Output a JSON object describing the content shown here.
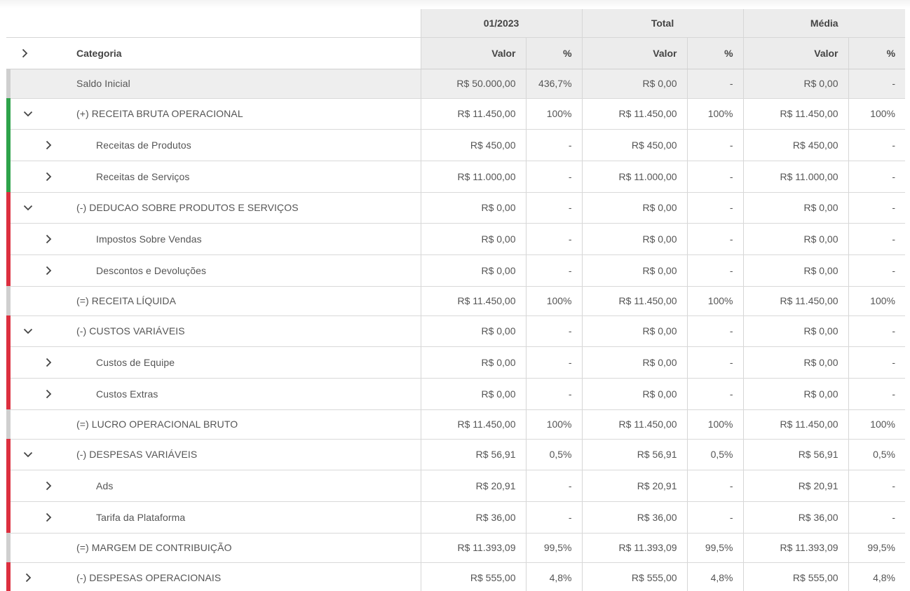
{
  "header": {
    "periods": [
      "01/2023",
      "Total",
      "Média"
    ],
    "category_label": "Categoria",
    "value_label": "Valor",
    "percent_label": "%"
  },
  "colors": {
    "revenue": "#2ea34a",
    "deduction": "#dc2f3f",
    "result": "#cfcfcf"
  },
  "rows": [
    {
      "label": "Saldo Inicial",
      "v1": "R$ 50.000,00",
      "p1": "436,7%",
      "v2": "R$ 0,00",
      "p2": "-",
      "v3": "R$ 0,00",
      "p3": "-"
    },
    {
      "label": "(+) RECEITA BRUTA OPERACIONAL",
      "v1": "R$ 11.450,00",
      "p1": "100%",
      "v2": "R$ 11.450,00",
      "p2": "100%",
      "v3": "R$ 11.450,00",
      "p3": "100%"
    },
    {
      "label": "Receitas de Produtos",
      "v1": "R$ 450,00",
      "p1": "-",
      "v2": "R$ 450,00",
      "p2": "-",
      "v3": "R$ 450,00",
      "p3": "-"
    },
    {
      "label": "Receitas de Serviços",
      "v1": "R$ 11.000,00",
      "p1": "-",
      "v2": "R$ 11.000,00",
      "p2": "-",
      "v3": "R$ 11.000,00",
      "p3": "-"
    },
    {
      "label": "(-) DEDUCAO SOBRE PRODUTOS E SERVIÇOS",
      "v1": "R$ 0,00",
      "p1": "-",
      "v2": "R$ 0,00",
      "p2": "-",
      "v3": "R$ 0,00",
      "p3": "-"
    },
    {
      "label": "Impostos Sobre Vendas",
      "v1": "R$ 0,00",
      "p1": "-",
      "v2": "R$ 0,00",
      "p2": "-",
      "v3": "R$ 0,00",
      "p3": "-"
    },
    {
      "label": "Descontos e Devoluções",
      "v1": "R$ 0,00",
      "p1": "-",
      "v2": "R$ 0,00",
      "p2": "-",
      "v3": "R$ 0,00",
      "p3": "-"
    },
    {
      "label": "(=) RECEITA LÍQUIDA",
      "v1": "R$ 11.450,00",
      "p1": "100%",
      "v2": "R$ 11.450,00",
      "p2": "100%",
      "v3": "R$ 11.450,00",
      "p3": "100%"
    },
    {
      "label": "(-) CUSTOS VARIÁVEIS",
      "v1": "R$ 0,00",
      "p1": "-",
      "v2": "R$ 0,00",
      "p2": "-",
      "v3": "R$ 0,00",
      "p3": "-"
    },
    {
      "label": "Custos de Equipe",
      "v1": "R$ 0,00",
      "p1": "-",
      "v2": "R$ 0,00",
      "p2": "-",
      "v3": "R$ 0,00",
      "p3": "-"
    },
    {
      "label": "Custos Extras",
      "v1": "R$ 0,00",
      "p1": "-",
      "v2": "R$ 0,00",
      "p2": "-",
      "v3": "R$ 0,00",
      "p3": "-"
    },
    {
      "label": "(=) LUCRO OPERACIONAL BRUTO",
      "v1": "R$ 11.450,00",
      "p1": "100%",
      "v2": "R$ 11.450,00",
      "p2": "100%",
      "v3": "R$ 11.450,00",
      "p3": "100%"
    },
    {
      "label": "(-) DESPESAS VARIÁVEIS",
      "v1": "R$ 56,91",
      "p1": "0,5%",
      "v2": "R$ 56,91",
      "p2": "0,5%",
      "v3": "R$ 56,91",
      "p3": "0,5%"
    },
    {
      "label": "Ads",
      "v1": "R$ 20,91",
      "p1": "-",
      "v2": "R$ 20,91",
      "p2": "-",
      "v3": "R$ 20,91",
      "p3": "-"
    },
    {
      "label": "Tarifa da Plataforma",
      "v1": "R$ 36,00",
      "p1": "-",
      "v2": "R$ 36,00",
      "p2": "-",
      "v3": "R$ 36,00",
      "p3": "-"
    },
    {
      "label": "(=) MARGEM DE CONTRIBUIÇÃO",
      "v1": "R$ 11.393,09",
      "p1": "99,5%",
      "v2": "R$ 11.393,09",
      "p2": "99,5%",
      "v3": "R$ 11.393,09",
      "p3": "99,5%"
    },
    {
      "label": "(-) DESPESAS OPERACIONAIS",
      "v1": "R$ 555,00",
      "p1": "4,8%",
      "v2": "R$ 555,00",
      "p2": "4,8%",
      "v3": "R$ 555,00",
      "p3": "4,8%"
    }
  ]
}
